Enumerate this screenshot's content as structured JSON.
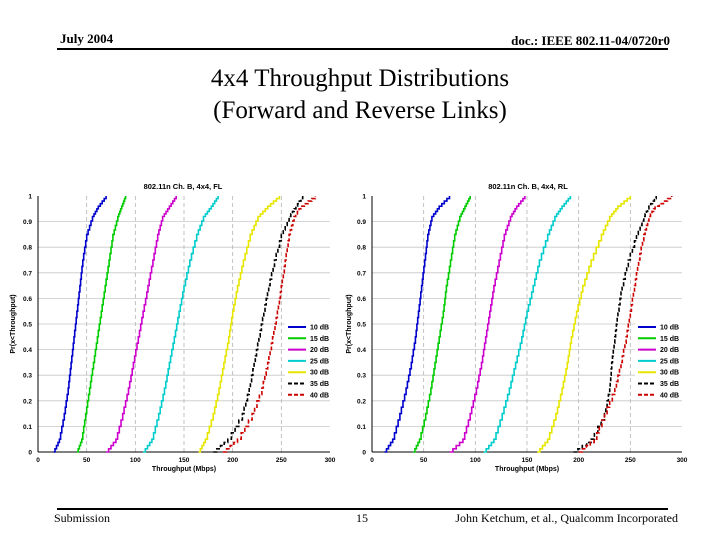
{
  "header": {
    "date": "July 2004",
    "doc_id": "doc.: IEEE 802.11-04/0720r0"
  },
  "slide": {
    "title_line1": "4x4 Throughput Distributions",
    "title_line2": "(Forward and Reverse Links)"
  },
  "footer": {
    "left": "Submission",
    "page": "15",
    "author": "John Ketchum, et al., Qualcomm Incorporated"
  },
  "chart_data": [
    {
      "type": "line",
      "title": "802.11n Ch. B, 4x4, FL",
      "xlabel": "Throughput (Mbps)",
      "ylabel": "Pr(x<Throughput)",
      "xlim": [
        0,
        300
      ],
      "ylim": [
        0,
        1
      ],
      "xticks": [
        "0",
        "50",
        "100",
        "150",
        "200",
        "250",
        "300"
      ],
      "yticks": [
        "0",
        "0.1",
        "0.2",
        "0.3",
        "0.4",
        "0.5",
        "0.6",
        "0.7",
        "0.8",
        "0.9",
        "1"
      ],
      "grid": true,
      "legend": "right",
      "series": [
        {
          "name": "10 dB",
          "color": "#0000cc",
          "dash": false,
          "x": [
            16,
            22,
            27,
            31,
            34,
            37,
            40,
            43,
            46,
            50,
            56,
            62,
            70
          ],
          "y": [
            0,
            0.05,
            0.15,
            0.25,
            0.35,
            0.45,
            0.55,
            0.65,
            0.75,
            0.85,
            0.92,
            0.96,
            1.0
          ]
        },
        {
          "name": "15 dB",
          "color": "#00cc00",
          "dash": false,
          "x": [
            40,
            45,
            49,
            53,
            57,
            61,
            65,
            69,
            73,
            77,
            82,
            86,
            90
          ],
          "y": [
            0,
            0.05,
            0.15,
            0.25,
            0.35,
            0.45,
            0.55,
            0.65,
            0.75,
            0.85,
            0.92,
            0.96,
            1.0
          ]
        },
        {
          "name": "20 dB",
          "color": "#cc00cc",
          "dash": false,
          "x": [
            70,
            80,
            87,
            93,
            98,
            103,
            108,
            113,
            118,
            123,
            128,
            135,
            142
          ],
          "y": [
            0,
            0.05,
            0.15,
            0.25,
            0.35,
            0.45,
            0.55,
            0.65,
            0.75,
            0.85,
            0.92,
            0.96,
            1.0
          ]
        },
        {
          "name": "25 dB",
          "color": "#00cccc",
          "dash": false,
          "x": [
            108,
            117,
            124,
            130,
            135,
            140,
            145,
            150,
            156,
            163,
            170,
            178,
            185
          ],
          "y": [
            0,
            0.05,
            0.15,
            0.25,
            0.35,
            0.45,
            0.55,
            0.65,
            0.75,
            0.85,
            0.92,
            0.96,
            1.0
          ]
        },
        {
          "name": "30 dB",
          "color": "#e6e600",
          "dash": false,
          "x": [
            165,
            172,
            180,
            186,
            191,
            196,
            200,
            205,
            211,
            218,
            226,
            236,
            248
          ],
          "y": [
            0,
            0.05,
            0.15,
            0.25,
            0.35,
            0.45,
            0.55,
            0.65,
            0.75,
            0.85,
            0.92,
            0.96,
            1.0
          ]
        },
        {
          "name": "35 dB",
          "color": "#000000",
          "dash": true,
          "x": [
            180,
            195,
            210,
            217,
            222,
            227,
            232,
            237,
            243,
            250,
            258,
            265,
            272
          ],
          "y": [
            0,
            0.05,
            0.15,
            0.25,
            0.35,
            0.45,
            0.55,
            0.65,
            0.75,
            0.85,
            0.92,
            0.96,
            1.0
          ]
        },
        {
          "name": "40 dB",
          "color": "#cc0000",
          "dash": true,
          "x": [
            190,
            205,
            220,
            230,
            236,
            241,
            246,
            250,
            254,
            258,
            263,
            270,
            285
          ],
          "y": [
            0,
            0.05,
            0.15,
            0.25,
            0.35,
            0.45,
            0.55,
            0.65,
            0.75,
            0.85,
            0.92,
            0.96,
            1.0
          ]
        }
      ]
    },
    {
      "type": "line",
      "title": "802.11n Ch. B, 4x4, RL",
      "xlabel": "Throughput (Mbps)",
      "ylabel": "Pr(x<Throughput)",
      "xlim": [
        0,
        300
      ],
      "ylim": [
        0,
        1
      ],
      "xticks": [
        "0",
        "50",
        "100",
        "150",
        "200",
        "250",
        "300"
      ],
      "yticks": [
        "0",
        "0.1",
        "0.2",
        "0.3",
        "0.4",
        "0.5",
        "0.6",
        "0.7",
        "0.8",
        "0.9",
        "1"
      ],
      "grid": true,
      "legend": "right",
      "series": [
        {
          "name": "10 dB",
          "color": "#0000cc",
          "dash": false,
          "x": [
            12,
            20,
            27,
            33,
            38,
            42,
            45,
            48,
            51,
            54,
            58,
            65,
            75
          ],
          "y": [
            0,
            0.05,
            0.15,
            0.25,
            0.35,
            0.45,
            0.55,
            0.65,
            0.75,
            0.85,
            0.92,
            0.96,
            1.0
          ]
        },
        {
          "name": "15 dB",
          "color": "#00cc00",
          "dash": false,
          "x": [
            40,
            46,
            52,
            57,
            61,
            65,
            69,
            72,
            76,
            80,
            85,
            90,
            95
          ],
          "y": [
            0,
            0.05,
            0.15,
            0.25,
            0.35,
            0.45,
            0.55,
            0.65,
            0.75,
            0.85,
            0.92,
            0.96,
            1.0
          ]
        },
        {
          "name": "20 dB",
          "color": "#cc00cc",
          "dash": false,
          "x": [
            75,
            88,
            95,
            101,
            106,
            110,
            114,
            118,
            123,
            128,
            134,
            140,
            148
          ],
          "y": [
            0,
            0.05,
            0.15,
            0.25,
            0.35,
            0.45,
            0.55,
            0.65,
            0.75,
            0.85,
            0.92,
            0.96,
            1.0
          ]
        },
        {
          "name": "25 dB",
          "color": "#00cccc",
          "dash": false,
          "x": [
            108,
            118,
            126,
            133,
            139,
            145,
            150,
            156,
            162,
            170,
            177,
            184,
            192
          ],
          "y": [
            0,
            0.05,
            0.15,
            0.25,
            0.35,
            0.45,
            0.55,
            0.65,
            0.75,
            0.85,
            0.92,
            0.96,
            1.0
          ]
        },
        {
          "name": "30 dB",
          "color": "#e6e600",
          "dash": false,
          "x": [
            160,
            170,
            178,
            184,
            189,
            193,
            198,
            204,
            212,
            222,
            230,
            238,
            250
          ],
          "y": [
            0,
            0.05,
            0.15,
            0.25,
            0.35,
            0.45,
            0.55,
            0.65,
            0.75,
            0.85,
            0.92,
            0.96,
            1.0
          ]
        },
        {
          "name": "35 dB",
          "color": "#000000",
          "dash": true,
          "x": [
            195,
            212,
            225,
            230,
            232,
            235,
            238,
            242,
            248,
            256,
            263,
            268,
            275
          ],
          "y": [
            0,
            0.05,
            0.15,
            0.25,
            0.35,
            0.45,
            0.55,
            0.65,
            0.75,
            0.85,
            0.92,
            0.96,
            1.0
          ]
        },
        {
          "name": "40 dB",
          "color": "#cc0000",
          "dash": true,
          "x": [
            200,
            215,
            225,
            235,
            241,
            246,
            250,
            254,
            258,
            263,
            268,
            274,
            290
          ],
          "y": [
            0,
            0.05,
            0.15,
            0.25,
            0.35,
            0.45,
            0.55,
            0.65,
            0.75,
            0.85,
            0.92,
            0.96,
            1.0
          ]
        }
      ]
    }
  ]
}
